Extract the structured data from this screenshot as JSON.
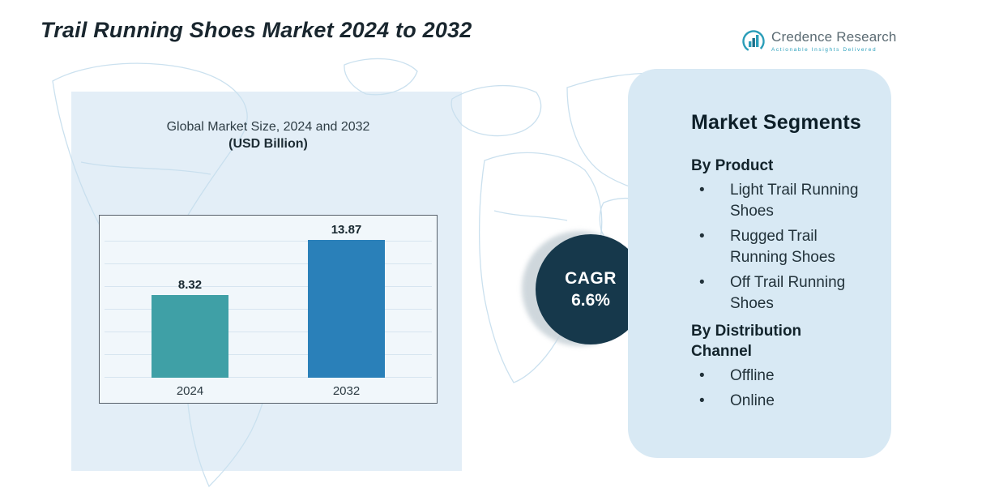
{
  "page": {
    "title": "Trail Running Shoes Market 2024 to 2032"
  },
  "logo": {
    "name": "Credence Research",
    "tagline": "Actionable Insights Delivered"
  },
  "chart_data": {
    "type": "bar",
    "title": "Global Market Size, 2024 and 2032",
    "subtitle": "(USD Billion)",
    "categories": [
      "2024",
      "2032"
    ],
    "values": [
      8.32,
      13.87
    ],
    "value_labels": [
      "8.32",
      "13.87"
    ],
    "colors": [
      "#3fa0a6",
      "#2a80b9"
    ],
    "ylim": [
      0,
      14
    ],
    "grid": true,
    "legend": "none"
  },
  "cagr": {
    "label": "CAGR",
    "value": "6.6%"
  },
  "segments": {
    "heading": "Market Segments",
    "groups": [
      {
        "title": "By Product",
        "items": [
          "Light Trail Running Shoes",
          "Rugged Trail Running Shoes",
          "Off Trail Running Shoes"
        ]
      },
      {
        "title": "By Distribution Channel",
        "items": [
          "Offline",
          "Online"
        ]
      }
    ]
  },
  "theme": {
    "title_color": "#19262e",
    "panel_bg": "#d8e9f4",
    "cagr_bg": "#16384b",
    "map_line": "#c8dfee",
    "bar_2024": "#3fa0a6",
    "bar_2032": "#2a80b9"
  }
}
